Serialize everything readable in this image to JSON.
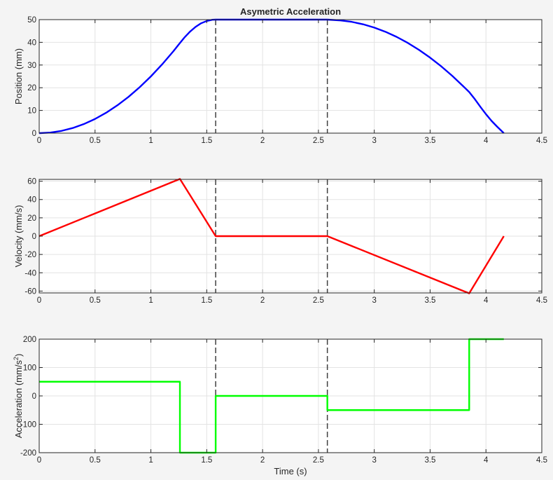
{
  "figure": {
    "title": "Asymetric Acceleration",
    "xlabel": "Time (s)"
  },
  "chart_data": [
    {
      "type": "line",
      "title": "Asymetric Acceleration",
      "xlabel": "",
      "ylabel": "Position (mm)",
      "xlim": [
        0,
        4.5
      ],
      "ylim": [
        0,
        50
      ],
      "xticks": [
        0,
        0.5,
        1,
        1.5,
        2,
        2.5,
        3,
        3.5,
        4,
        4.5
      ],
      "xtick_labels": [
        "0",
        "0.5",
        "1",
        "1.5",
        "2",
        "2.5",
        "3",
        "3.5",
        "4",
        "4.5"
      ],
      "yticks": [
        0,
        10,
        20,
        30,
        40,
        50
      ],
      "ytick_labels": [
        "0",
        "10",
        "20",
        "30",
        "40",
        "50"
      ],
      "grid": true,
      "vlines": [
        1.58,
        2.58
      ],
      "series": [
        {
          "color": "#0000ff",
          "x": [
            0,
            0.1,
            0.2,
            0.3,
            0.4,
            0.5,
            0.6,
            0.7,
            0.8,
            0.9,
            1.0,
            1.1,
            1.2,
            1.26,
            1.3,
            1.35,
            1.4,
            1.45,
            1.5,
            1.55,
            1.58,
            2.58,
            2.7,
            2.8,
            2.9,
            3.0,
            3.1,
            3.2,
            3.3,
            3.4,
            3.5,
            3.6,
            3.7,
            3.8,
            3.85,
            3.9,
            3.95,
            4.0,
            4.05,
            4.1,
            4.16
          ],
          "y": [
            0,
            0.25,
            1.0,
            2.25,
            4.0,
            6.25,
            9.0,
            12.25,
            16.0,
            20.25,
            25.0,
            30.25,
            36.0,
            39.7,
            42.1,
            44.7,
            46.8,
            48.4,
            49.4,
            49.95,
            50.0,
            50.0,
            49.65,
            49.0,
            47.95,
            46.5,
            44.65,
            42.4,
            39.75,
            36.7,
            33.25,
            29.4,
            25.15,
            20.5,
            18.1,
            15.0,
            11.6,
            8.35,
            5.4,
            2.85,
            0.0
          ]
        }
      ]
    },
    {
      "type": "line",
      "title": "",
      "xlabel": "",
      "ylabel": "Velocity (mm/s)",
      "xlim": [
        0,
        4.5
      ],
      "ylim": [
        -62,
        62
      ],
      "xticks": [
        0,
        0.5,
        1,
        1.5,
        2,
        2.5,
        3,
        3.5,
        4,
        4.5
      ],
      "xtick_labels": [
        "0",
        "0.5",
        "1",
        "1.5",
        "2",
        "2.5",
        "3",
        "3.5",
        "4",
        "4.5"
      ],
      "yticks": [
        -60,
        -40,
        -20,
        0,
        20,
        40,
        60
      ],
      "ytick_labels": [
        "-60",
        "-40",
        "-20",
        "0",
        "20",
        "40",
        "60"
      ],
      "grid": true,
      "vlines": [
        1.58,
        2.58
      ],
      "series": [
        {
          "color": "#ff0000",
          "x": [
            0,
            1.26,
            1.58,
            2.58,
            3.85,
            4.16
          ],
          "y": [
            0,
            62.5,
            0,
            0,
            -62.5,
            0
          ]
        }
      ]
    },
    {
      "type": "line",
      "title": "",
      "xlabel": "Time (s)",
      "ylabel": "Acceleration (mm/s",
      "ylabel_sup": "2",
      "ylabel_end": ")",
      "xlim": [
        0,
        4.5
      ],
      "ylim": [
        -200,
        200
      ],
      "xticks": [
        0,
        0.5,
        1,
        1.5,
        2,
        2.5,
        3,
        3.5,
        4,
        4.5
      ],
      "xtick_labels": [
        "0",
        "0.5",
        "1",
        "1.5",
        "2",
        "2.5",
        "3",
        "3.5",
        "4",
        "4.5"
      ],
      "yticks": [
        -200,
        -100,
        0,
        100,
        200
      ],
      "ytick_labels": [
        "-200",
        "-100",
        "0",
        "100",
        "200"
      ],
      "grid": true,
      "vlines": [
        1.58,
        2.58
      ],
      "series": [
        {
          "color": "#00ff00",
          "x": [
            0,
            1.26,
            1.26,
            1.58,
            1.58,
            2.58,
            2.58,
            3.85,
            3.85,
            4.16
          ],
          "y": [
            50,
            50,
            -200,
            -200,
            0,
            0,
            -50,
            -50,
            200,
            200
          ]
        }
      ]
    }
  ]
}
